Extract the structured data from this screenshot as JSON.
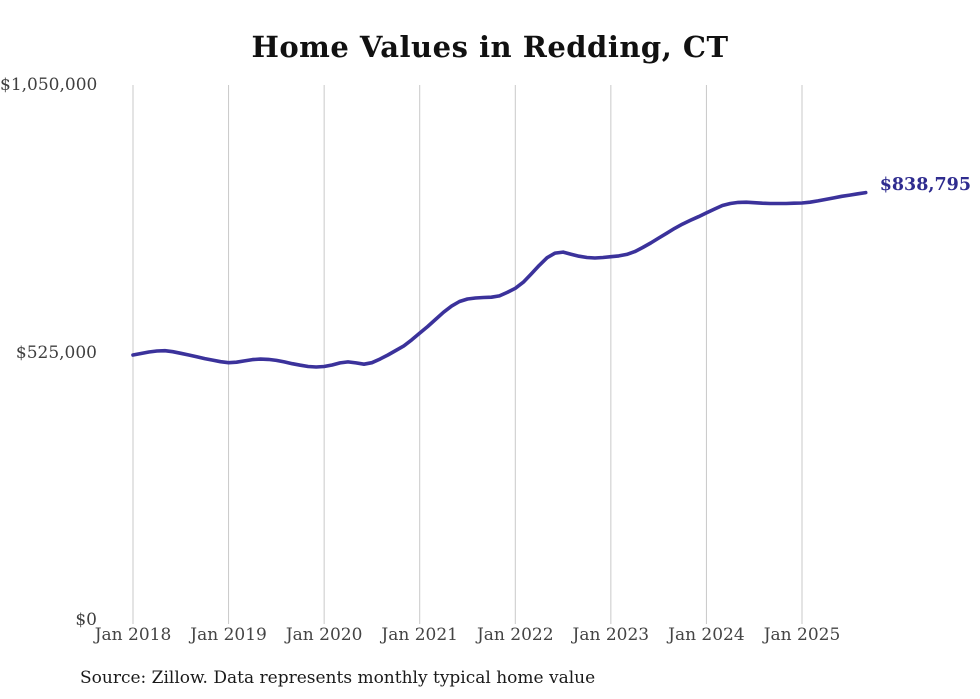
{
  "chart_data": {
    "type": "line",
    "title": "Home Values in Redding, CT",
    "source_note": "Source: Zillow. Data represents monthly typical home value",
    "series_name": "Monthly typical home value",
    "x_start_month": "2018-01",
    "x_cadence": "monthly",
    "x_tick_labels": [
      "Jan 2018",
      "Jan 2019",
      "Jan 2020",
      "Jan 2021",
      "Jan 2022",
      "Jan 2023",
      "Jan 2024",
      "Jan 2025"
    ],
    "y_ticks": [
      {
        "label": "$0",
        "value": 0
      },
      {
        "label": "$525,000",
        "value": 525000
      },
      {
        "label": "$1,050,000",
        "value": 1050000
      }
    ],
    "ylim": [
      0,
      1050000
    ],
    "grid": "vertical-only",
    "legend": "none",
    "end_label": "$838,795",
    "final_value": 838795,
    "line_color": "#3b329b",
    "end_label_color": "#2f2c8f",
    "grid_color": "#c9c9c9",
    "axis_text_color": "#3f3f3f",
    "values": [
      520000,
      523000,
      526000,
      528000,
      528500,
      526500,
      523500,
      520000,
      516500,
      513000,
      510000,
      507000,
      505000,
      506000,
      508500,
      511000,
      512000,
      511500,
      509500,
      506500,
      503000,
      500000,
      497500,
      496500,
      497500,
      500500,
      504500,
      506500,
      504500,
      502000,
      505000,
      512000,
      520000,
      529000,
      538000,
      550000,
      563000,
      576000,
      590000,
      604000,
      616000,
      625000,
      630000,
      632000,
      633000,
      633500,
      636000,
      643000,
      651000,
      663000,
      679000,
      696000,
      711000,
      720000,
      722000,
      718000,
      714000,
      711500,
      710500,
      711500,
      713000,
      714500,
      717500,
      723000,
      731000,
      740000,
      749500,
      759000,
      768500,
      777000,
      784500,
      791500,
      799000,
      806500,
      813500,
      817500,
      819500,
      820000,
      819000,
      818000,
      817500,
      817500,
      817500,
      818000,
      818500,
      820000,
      822500,
      825500,
      828500,
      831500,
      834000,
      836500,
      838795
    ]
  }
}
